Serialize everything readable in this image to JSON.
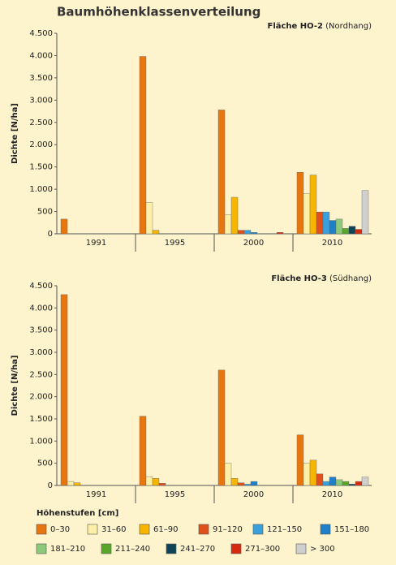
{
  "title": "Baumhöhenklassenverteilung",
  "legend_title": "Höhenstufen [cm]",
  "chart_data": [
    {
      "type": "bar",
      "panel_label": "Fläche HO-2",
      "panel_note": "(Nordhang)",
      "ylabel": "Dichte [N/ha]",
      "categories": [
        "1991",
        "1995",
        "2000",
        "2010"
      ],
      "ylim": [
        0,
        4500
      ],
      "yticks": [
        0,
        500,
        {
          "value": 1000,
          "label": "1.000"
        },
        {
          "value": 1500,
          "label": "1.500"
        },
        {
          "value": 2000,
          "label": "2.000"
        },
        {
          "value": 2500,
          "label": "2.500"
        },
        {
          "value": 3000,
          "label": "3.000"
        },
        {
          "value": 3500,
          "label": "3.500"
        },
        {
          "value": 4000,
          "label": "4.000"
        },
        {
          "value": 4500,
          "label": "4.500"
        }
      ],
      "series": [
        {
          "name": "0–30",
          "color": "#e8760f",
          "values": [
            330,
            3980,
            2780,
            1380
          ]
        },
        {
          "name": "31–60",
          "color": "#fdf0a6",
          "values": [
            0,
            700,
            430,
            900
          ]
        },
        {
          "name": "61–90",
          "color": "#f7b500",
          "values": [
            0,
            80,
            820,
            1320
          ]
        },
        {
          "name": "91–120",
          "color": "#e0501a",
          "values": [
            0,
            0,
            80,
            490
          ]
        },
        {
          "name": "121–150",
          "color": "#3aa0dc",
          "values": [
            0,
            0,
            80,
            490
          ]
        },
        {
          "name": "151–180",
          "color": "#1f7fc8",
          "values": [
            0,
            0,
            30,
            300
          ]
        },
        {
          "name": "181–210",
          "color": "#8dc97b",
          "values": [
            0,
            0,
            0,
            330
          ]
        },
        {
          "name": "211–240",
          "color": "#58a62a",
          "values": [
            0,
            0,
            0,
            120
          ]
        },
        {
          "name": "241–270",
          "color": "#0f4458",
          "values": [
            0,
            0,
            0,
            170
          ]
        },
        {
          "name": "271–300",
          "color": "#d62a10",
          "values": [
            0,
            0,
            30,
            100
          ]
        },
        {
          "name": "> 300",
          "color": "#cfcfcf",
          "values": [
            0,
            0,
            0,
            970
          ]
        }
      ]
    },
    {
      "type": "bar",
      "panel_label": "Fläche HO-3",
      "panel_note": "(Südhang)",
      "ylabel": "Dichte [N/ha]",
      "categories": [
        "1991",
        "1995",
        "2000",
        "2010"
      ],
      "ylim": [
        0,
        4500
      ],
      "yticks": [
        0,
        500,
        {
          "value": 1000,
          "label": "1.000"
        },
        {
          "value": 1500,
          "label": "1.500"
        },
        {
          "value": 2000,
          "label": "2.000"
        },
        {
          "value": 2500,
          "label": "2.500"
        },
        {
          "value": 3000,
          "label": "3.000"
        },
        {
          "value": 3500,
          "label": "3.500"
        },
        {
          "value": 4000,
          "label": "4.000"
        },
        {
          "value": 4500,
          "label": "4.500"
        }
      ],
      "series": [
        {
          "name": "0–30",
          "color": "#e8760f",
          "values": [
            4300,
            1560,
            2600,
            1140
          ]
        },
        {
          "name": "31–60",
          "color": "#fdf0a6",
          "values": [
            90,
            200,
            500,
            500
          ]
        },
        {
          "name": "61–90",
          "color": "#f7b500",
          "values": [
            60,
            160,
            160,
            570
          ]
        },
        {
          "name": "91–120",
          "color": "#e0501a",
          "values": [
            0,
            50,
            60,
            260
          ]
        },
        {
          "name": "121–150",
          "color": "#3aa0dc",
          "values": [
            0,
            0,
            30,
            90
          ]
        },
        {
          "name": "151–180",
          "color": "#1f7fc8",
          "values": [
            0,
            0,
            90,
            190
          ]
        },
        {
          "name": "181–210",
          "color": "#8dc97b",
          "values": [
            0,
            0,
            0,
            130
          ]
        },
        {
          "name": "211–240",
          "color": "#58a62a",
          "values": [
            0,
            0,
            0,
            90
          ]
        },
        {
          "name": "241–270",
          "color": "#0f4458",
          "values": [
            0,
            0,
            0,
            30
          ]
        },
        {
          "name": "271–300",
          "color": "#d62a10",
          "values": [
            0,
            0,
            0,
            90
          ]
        },
        {
          "name": "> 300",
          "color": "#cfcfcf",
          "values": [
            0,
            0,
            0,
            190
          ]
        }
      ]
    }
  ]
}
